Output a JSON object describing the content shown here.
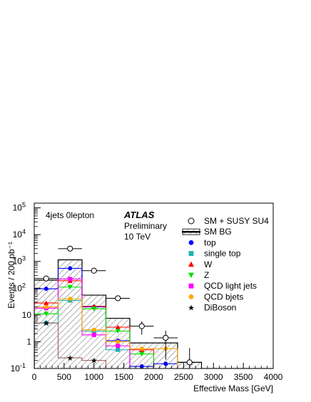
{
  "chart_data": {
    "type": "histogram",
    "xlabel": "Effective Mass [GeV]",
    "ylabel": "Events / 200 pb⁻¹",
    "xlim": [
      0,
      4000
    ],
    "ylim": [
      0.1,
      150000
    ],
    "yscale": "log",
    "x_ticks": [
      0,
      500,
      1000,
      1500,
      2000,
      2500,
      3000,
      3500,
      4000
    ],
    "y_ticks": [
      {
        "exp": -1,
        "label_base": "10",
        "label_exp": "-1"
      },
      {
        "exp": 0,
        "label_base": "1",
        "label_exp": ""
      },
      {
        "exp": 1,
        "label_base": "10",
        "label_exp": ""
      },
      {
        "exp": 2,
        "label_base": "10",
        "label_exp": "2"
      },
      {
        "exp": 3,
        "label_base": "10",
        "label_exp": "3"
      },
      {
        "exp": 4,
        "label_base": "10",
        "label_exp": "4"
      },
      {
        "exp": 5,
        "label_base": "10",
        "label_exp": "5"
      }
    ],
    "annotations": [
      "4jets 0lepton",
      "ATLAS",
      "Preliminary",
      "10 TeV"
    ],
    "legend_position": "top-right",
    "bin_edges": [
      0,
      400,
      800,
      1200,
      1600,
      2000,
      2400,
      2800,
      3200,
      3600,
      4000
    ],
    "bin_centers": [
      200,
      600,
      1000,
      1400,
      1800,
      2200,
      2600,
      3000,
      3400,
      3800
    ],
    "series": [
      {
        "name": "SM + SUSY SU4",
        "style": "open-marker",
        "color": "#000000",
        "values": [
          230,
          3000,
          450,
          42,
          3.8,
          1.4,
          0.17,
          null,
          null,
          null
        ]
      },
      {
        "name": "SM BG",
        "style": "hatched-hist",
        "color": "#000000",
        "values": [
          200,
          1150,
          55,
          7.5,
          0.9,
          0.9,
          0.17,
          0.1,
          0.1,
          0.1
        ]
      },
      {
        "name": "top",
        "style": "marker-hist",
        "marker": "circle",
        "color": "#0000ff",
        "values": [
          95,
          550,
          20,
          1.1,
          0.12,
          0.15,
          null,
          null,
          null,
          null
        ]
      },
      {
        "name": "single top",
        "style": "marker-hist",
        "marker": "square",
        "color": "#1ab2b2",
        "values": [
          5,
          35,
          2.5,
          0.5,
          null,
          null,
          null,
          null,
          null,
          null
        ]
      },
      {
        "name": "W",
        "style": "marker-hist",
        "marker": "triangle-up",
        "color": "#ff0000",
        "values": [
          28,
          190,
          21,
          3.5,
          0.5,
          null,
          null,
          null,
          null,
          null
        ]
      },
      {
        "name": "Z",
        "style": "marker-hist",
        "marker": "triangle-down",
        "color": "#00dd00",
        "values": [
          11,
          110,
          17,
          2.5,
          0.35,
          null,
          null,
          null,
          null,
          null
        ]
      },
      {
        "name": "QCD light jets",
        "style": "marker-hist",
        "marker": "square",
        "color": "#ff00ff",
        "values": [
          18,
          220,
          1.8,
          0.7,
          null,
          null,
          null,
          null,
          null,
          null
        ]
      },
      {
        "name": "QCD bjets",
        "style": "marker-hist",
        "marker": "circle",
        "color": "#ffa500",
        "values": [
          20,
          40,
          2.8,
          1.0,
          0.55,
          0.55,
          null,
          null,
          null,
          null
        ]
      },
      {
        "name": "DiBoson",
        "style": "marker-hist",
        "marker": "star",
        "color": "#a06060",
        "values": [
          5,
          0.25,
          0.2,
          null,
          null,
          null,
          null,
          null,
          null,
          null
        ]
      }
    ]
  }
}
